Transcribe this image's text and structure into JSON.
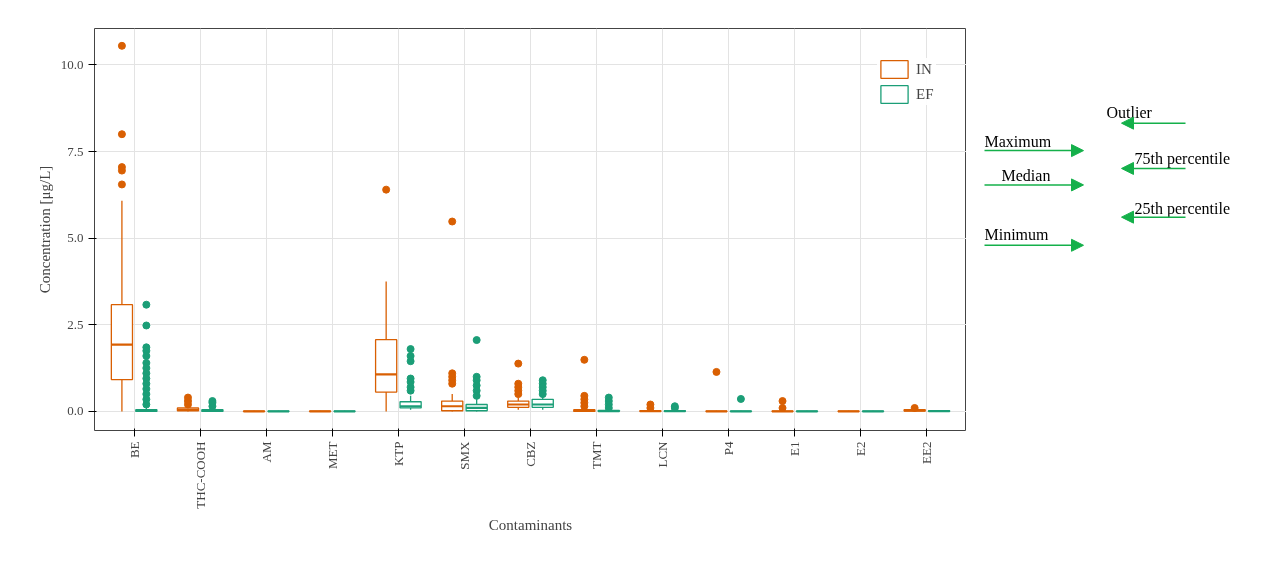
{
  "chart_data": {
    "type": "box",
    "xlabel": "Contaminants",
    "ylabel": "Concentration [μg/L]",
    "categories": [
      "BE",
      "THC-COOH",
      "AM",
      "MET",
      "KTP",
      "SMX",
      "CBZ",
      "TMT",
      "LCN",
      "P4",
      "E1",
      "E2",
      "EE2"
    ],
    "ylim": [
      -0.55,
      11.05
    ],
    "yticks": [
      {
        "value": 0,
        "label": "0.0"
      },
      {
        "value": 2.5,
        "label": "2.5"
      },
      {
        "value": 5,
        "label": "5.0"
      },
      {
        "value": 7.5,
        "label": "7.5"
      },
      {
        "value": 10,
        "label": "10.0"
      }
    ],
    "grid": true,
    "legend": "top right",
    "series": [
      {
        "name": "IN",
        "color": "#d95f02",
        "boxes": [
          {
            "low": 0,
            "q1": 0.92,
            "median": 1.93,
            "q3": 3.08,
            "high": 6.08,
            "outliers": [
              10.55,
              8.0,
              7.05,
              6.95,
              6.55
            ]
          },
          {
            "low": 0,
            "q1": 0.02,
            "median": 0.05,
            "q3": 0.1,
            "high": 0.15,
            "outliers": [
              0.2,
              0.3,
              0.4
            ]
          },
          {
            "low": 0,
            "q1": 0,
            "median": 0,
            "q3": 0.01,
            "high": 0.02
          },
          {
            "low": 0,
            "q1": 0,
            "median": 0,
            "q3": 0.01,
            "high": 0.02
          },
          {
            "low": 0,
            "q1": 0.56,
            "median": 1.07,
            "q3": 2.07,
            "high": 3.75,
            "outliers": [
              6.4
            ]
          },
          {
            "low": 0,
            "q1": 0.02,
            "median": 0.15,
            "q3": 0.3,
            "high": 0.5,
            "outliers": [
              5.48,
              1.1,
              1.0,
              0.9,
              0.8
            ]
          },
          {
            "low": 0.05,
            "q1": 0.12,
            "median": 0.2,
            "q3": 0.3,
            "high": 0.4,
            "outliers": [
              1.38,
              0.8,
              0.7,
              0.6,
              0.5
            ]
          },
          {
            "low": 0,
            "q1": 0,
            "median": 0.02,
            "q3": 0.05,
            "high": 0.1,
            "outliers": [
              1.49,
              0.45,
              0.35,
              0.25,
              0.15
            ]
          },
          {
            "low": 0,
            "q1": 0,
            "median": 0.01,
            "q3": 0.02,
            "high": 0.05,
            "outliers": [
              0.2,
              0.1
            ]
          },
          {
            "low": 0,
            "q1": 0,
            "median": 0,
            "q3": 0.01,
            "high": 0.02,
            "outliers": [
              1.14
            ]
          },
          {
            "low": 0,
            "q1": 0,
            "median": 0,
            "q3": 0.01,
            "high": 0.02,
            "outliers": [
              0.3,
              0.1
            ]
          },
          {
            "low": 0,
            "q1": 0,
            "median": 0,
            "q3": 0.01,
            "high": 0.02
          },
          {
            "low": 0,
            "q1": 0.01,
            "median": 0.03,
            "q3": 0.05,
            "high": 0.07,
            "outliers": [
              0.1
            ]
          }
        ]
      },
      {
        "name": "EF",
        "color": "#1b9e77",
        "boxes": [
          {
            "low": 0,
            "q1": 0,
            "median": 0.02,
            "q3": 0.05,
            "high": 0.1,
            "outliers": [
              3.08,
              2.48,
              1.85,
              1.75,
              1.6,
              1.4,
              1.25,
              1.1,
              0.95,
              0.8,
              0.65,
              0.5,
              0.35,
              0.2
            ]
          },
          {
            "low": 0,
            "q1": 0,
            "median": 0.02,
            "q3": 0.05,
            "high": 0.1,
            "outliers": [
              0.15,
              0.25,
              0.3
            ]
          },
          {
            "low": 0,
            "q1": 0,
            "median": 0,
            "q3": 0.01,
            "high": 0.02
          },
          {
            "low": 0,
            "q1": 0,
            "median": 0,
            "q3": 0.01,
            "high": 0.02
          },
          {
            "low": 0.05,
            "q1": 0.1,
            "median": 0.15,
            "q3": 0.28,
            "high": 0.45,
            "outliers": [
              0.6,
              0.7,
              0.85,
              0.95,
              1.45,
              1.6,
              1.8
            ]
          },
          {
            "low": 0,
            "q1": 0.02,
            "median": 0.1,
            "q3": 0.2,
            "high": 0.35,
            "outliers": [
              2.06,
              1.0,
              0.9,
              0.75,
              0.6,
              0.45
            ]
          },
          {
            "low": 0.05,
            "q1": 0.12,
            "median": 0.2,
            "q3": 0.35,
            "high": 0.45,
            "outliers": [
              0.9,
              0.8,
              0.7,
              0.6,
              0.5
            ]
          },
          {
            "low": 0,
            "q1": 0,
            "median": 0.01,
            "q3": 0.03,
            "high": 0.05,
            "outliers": [
              0.4,
              0.3,
              0.2,
              0.1
            ]
          },
          {
            "low": 0,
            "q1": 0,
            "median": 0.01,
            "q3": 0.02,
            "high": 0.05,
            "outliers": [
              0.15,
              0.1
            ]
          },
          {
            "low": 0,
            "q1": 0,
            "median": 0,
            "q3": 0.01,
            "high": 0.02,
            "outliers": [
              0.36
            ]
          },
          {
            "low": 0,
            "q1": 0,
            "median": 0,
            "q3": 0.01,
            "high": 0.02
          },
          {
            "low": 0,
            "q1": 0,
            "median": 0,
            "q3": 0.01,
            "high": 0.02
          },
          {
            "low": 0,
            "q1": 0,
            "median": 0.01,
            "q3": 0.02,
            "high": 0.03
          }
        ]
      }
    ],
    "annotations": [
      "Outlier",
      "Maximum",
      "75th percentile",
      "Median",
      "25th percentile",
      "Minimum"
    ]
  }
}
